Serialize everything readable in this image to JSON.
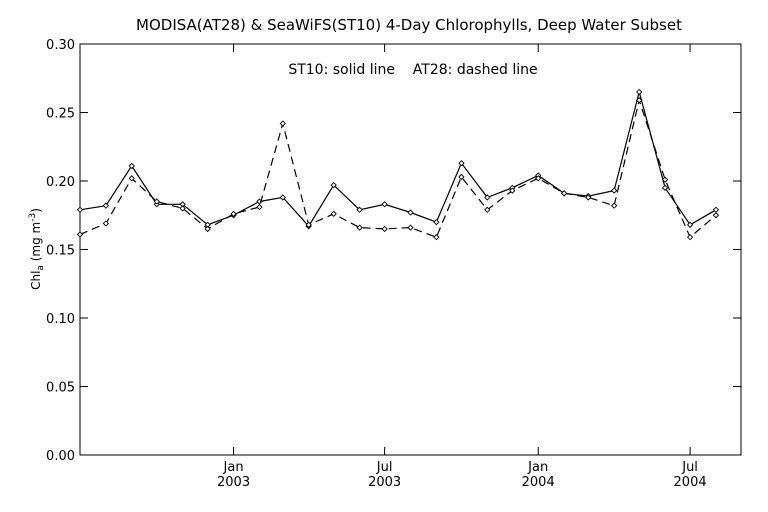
{
  "chart_data": {
    "type": "line",
    "title": "MODISA(AT28) & SeaWiFS(ST10) 4-Day Chlorophylls, Deep Water Subset",
    "annotation": "ST10: solid line    AT28: dashed line",
    "ylabel": {
      "main": "Chl",
      "sub": "a",
      "unit_open": " (mg m",
      "sup": "-3",
      "unit_close": ")"
    },
    "ylim": [
      0.0,
      0.3
    ],
    "yticks": [
      0.0,
      0.05,
      0.1,
      0.15,
      0.2,
      0.25,
      0.3
    ],
    "ytick_labels": [
      "0.00",
      "0.05",
      "0.10",
      "0.15",
      "0.20",
      "0.25",
      "0.30"
    ],
    "xlim": [
      "2002-07-01",
      "2004-08-31"
    ],
    "xticks": [
      {
        "date": "2003-01-01",
        "label1": "Jan",
        "label2": "2003"
      },
      {
        "date": "2003-07-01",
        "label1": "Jul",
        "label2": "2003"
      },
      {
        "date": "2004-01-01",
        "label1": "Jan",
        "label2": "2004"
      },
      {
        "date": "2004-07-01",
        "label1": "Jul",
        "label2": "2004"
      }
    ],
    "series": [
      {
        "name": "ST10",
        "style": "solid",
        "color": "#000000",
        "points": [
          [
            "2002-07-01",
            0.179
          ],
          [
            "2002-08-01",
            0.182
          ],
          [
            "2002-09-01",
            0.211
          ],
          [
            "2002-10-01",
            0.183
          ],
          [
            "2002-11-01",
            0.183
          ],
          [
            "2002-12-01",
            0.168
          ],
          [
            "2003-01-01",
            0.175
          ],
          [
            "2003-02-01",
            0.185
          ],
          [
            "2003-03-01",
            0.188
          ],
          [
            "2003-04-01",
            0.167
          ],
          [
            "2003-05-01",
            0.197
          ],
          [
            "2003-06-01",
            0.179
          ],
          [
            "2003-07-01",
            0.183
          ],
          [
            "2003-08-01",
            0.177
          ],
          [
            "2003-09-01",
            0.17
          ],
          [
            "2003-10-01",
            0.213
          ],
          [
            "2003-11-01",
            0.188
          ],
          [
            "2003-12-01",
            0.195
          ],
          [
            "2004-01-01",
            0.204
          ],
          [
            "2004-02-01",
            0.191
          ],
          [
            "2004-03-01",
            0.189
          ],
          [
            "2004-04-01",
            0.193
          ],
          [
            "2004-05-01",
            0.265
          ],
          [
            "2004-06-01",
            0.195
          ],
          [
            "2004-07-01",
            0.168
          ],
          [
            "2004-08-01",
            0.179
          ]
        ]
      },
      {
        "name": "AT28",
        "style": "dashed",
        "color": "#000000",
        "points": [
          [
            "2002-07-01",
            0.161
          ],
          [
            "2002-08-01",
            0.169
          ],
          [
            "2002-09-01",
            0.202
          ],
          [
            "2002-10-01",
            0.185
          ],
          [
            "2002-11-01",
            0.18
          ],
          [
            "2002-12-01",
            0.165
          ],
          [
            "2003-01-01",
            0.176
          ],
          [
            "2003-02-01",
            0.181
          ],
          [
            "2003-03-01",
            0.242
          ],
          [
            "2003-04-01",
            0.168
          ],
          [
            "2003-05-01",
            0.176
          ],
          [
            "2003-06-01",
            0.166
          ],
          [
            "2003-07-01",
            0.165
          ],
          [
            "2003-08-01",
            0.166
          ],
          [
            "2003-09-01",
            0.159
          ],
          [
            "2003-10-01",
            0.203
          ],
          [
            "2003-11-01",
            0.179
          ],
          [
            "2003-12-01",
            0.193
          ],
          [
            "2004-01-01",
            0.202
          ],
          [
            "2004-02-01",
            0.191
          ],
          [
            "2004-03-01",
            0.188
          ],
          [
            "2004-04-01",
            0.182
          ],
          [
            "2004-05-01",
            0.259
          ],
          [
            "2004-06-01",
            0.201
          ],
          [
            "2004-07-01",
            0.159
          ],
          [
            "2004-08-01",
            0.175
          ]
        ]
      }
    ],
    "grid": false,
    "legend": "none"
  }
}
